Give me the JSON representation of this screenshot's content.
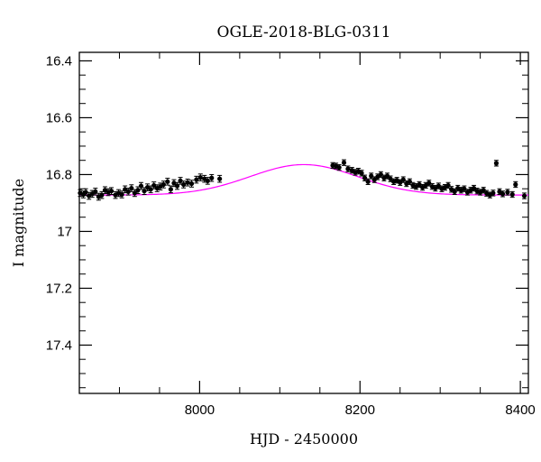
{
  "chart_data": {
    "type": "scatter",
    "title": "OGLE-2018-BLG-0311",
    "xlabel": "HJD - 2450000",
    "ylabel": "I magnitude",
    "xlim": [
      7850,
      8410
    ],
    "ylim": [
      17.57,
      16.37
    ],
    "y_inverted": true,
    "x_ticks": [
      8000,
      8200,
      8400
    ],
    "x_tick_labels": [
      "8000",
      "8200",
      "8400"
    ],
    "y_ticks": [
      16.4,
      16.6,
      16.8,
      17.0,
      17.2,
      17.4
    ],
    "y_tick_labels": [
      "16.4",
      "16.6",
      "16.8",
      "17",
      "17.2",
      "17.4"
    ],
    "grid": false,
    "series": [
      {
        "kind": "points-with-errorbars",
        "color": "#000000",
        "points": [
          [
            7851,
            16.865,
            0.012
          ],
          [
            7855,
            16.87,
            0.012
          ],
          [
            7858,
            16.862,
            0.012
          ],
          [
            7862,
            16.875,
            0.012
          ],
          [
            7866,
            16.868,
            0.012
          ],
          [
            7870,
            16.86,
            0.012
          ],
          [
            7874,
            16.878,
            0.012
          ],
          [
            7878,
            16.872,
            0.012
          ],
          [
            7882,
            16.855,
            0.012
          ],
          [
            7886,
            16.862,
            0.012
          ],
          [
            7890,
            16.858,
            0.012
          ],
          [
            7895,
            16.872,
            0.012
          ],
          [
            7899,
            16.865,
            0.012
          ],
          [
            7903,
            16.87,
            0.012
          ],
          [
            7907,
            16.852,
            0.012
          ],
          [
            7911,
            16.86,
            0.012
          ],
          [
            7915,
            16.848,
            0.012
          ],
          [
            7919,
            16.865,
            0.012
          ],
          [
            7923,
            16.855,
            0.012
          ],
          [
            7927,
            16.84,
            0.012
          ],
          [
            7931,
            16.858,
            0.012
          ],
          [
            7935,
            16.845,
            0.012
          ],
          [
            7939,
            16.852,
            0.012
          ],
          [
            7943,
            16.838,
            0.012
          ],
          [
            7947,
            16.848,
            0.012
          ],
          [
            7951,
            16.842,
            0.012
          ],
          [
            7955,
            16.835,
            0.012
          ],
          [
            7960,
            16.825,
            0.012
          ],
          [
            7964,
            16.852,
            0.012
          ],
          [
            7968,
            16.83,
            0.012
          ],
          [
            7972,
            16.84,
            0.012
          ],
          [
            7976,
            16.822,
            0.012
          ],
          [
            7980,
            16.835,
            0.012
          ],
          [
            7985,
            16.828,
            0.012
          ],
          [
            7990,
            16.832,
            0.012
          ],
          [
            7996,
            16.818,
            0.012
          ],
          [
            8001,
            16.81,
            0.012
          ],
          [
            8006,
            16.815,
            0.012
          ],
          [
            8010,
            16.822,
            0.012
          ],
          [
            8015,
            16.812,
            0.012
          ],
          [
            8025,
            16.815,
            0.012
          ],
          [
            8166,
            16.768,
            0.01
          ],
          [
            8170,
            16.77,
            0.01
          ],
          [
            8174,
            16.775,
            0.01
          ],
          [
            8180,
            16.758,
            0.01
          ],
          [
            8185,
            16.78,
            0.01
          ],
          [
            8190,
            16.785,
            0.01
          ],
          [
            8194,
            16.792,
            0.01
          ],
          [
            8198,
            16.788,
            0.01
          ],
          [
            8202,
            16.795,
            0.01
          ],
          [
            8206,
            16.812,
            0.01
          ],
          [
            8210,
            16.825,
            0.01
          ],
          [
            8214,
            16.805,
            0.01
          ],
          [
            8218,
            16.818,
            0.01
          ],
          [
            8222,
            16.808,
            0.01
          ],
          [
            8226,
            16.8,
            0.01
          ],
          [
            8230,
            16.812,
            0.01
          ],
          [
            8234,
            16.805,
            0.01
          ],
          [
            8238,
            16.815,
            0.01
          ],
          [
            8242,
            16.825,
            0.01
          ],
          [
            8246,
            16.82,
            0.01
          ],
          [
            8250,
            16.828,
            0.01
          ],
          [
            8254,
            16.818,
            0.01
          ],
          [
            8258,
            16.832,
            0.01
          ],
          [
            8262,
            16.825,
            0.01
          ],
          [
            8266,
            16.838,
            0.01
          ],
          [
            8270,
            16.842,
            0.01
          ],
          [
            8274,
            16.835,
            0.01
          ],
          [
            8278,
            16.845,
            0.01
          ],
          [
            8282,
            16.838,
            0.01
          ],
          [
            8286,
            16.83,
            0.01
          ],
          [
            8290,
            16.842,
            0.01
          ],
          [
            8294,
            16.848,
            0.01
          ],
          [
            8298,
            16.84,
            0.01
          ],
          [
            8302,
            16.85,
            0.01
          ],
          [
            8306,
            16.845,
            0.01
          ],
          [
            8310,
            16.838,
            0.01
          ],
          [
            8314,
            16.852,
            0.01
          ],
          [
            8318,
            16.86,
            0.01
          ],
          [
            8322,
            16.848,
            0.01
          ],
          [
            8326,
            16.855,
            0.01
          ],
          [
            8330,
            16.85,
            0.01
          ],
          [
            8334,
            16.862,
            0.01
          ],
          [
            8338,
            16.855,
            0.01
          ],
          [
            8342,
            16.848,
            0.01
          ],
          [
            8346,
            16.858,
            0.01
          ],
          [
            8350,
            16.862,
            0.01
          ],
          [
            8354,
            16.855,
            0.01
          ],
          [
            8358,
            16.866,
            0.01
          ],
          [
            8362,
            16.872,
            0.01
          ],
          [
            8366,
            16.865,
            0.01
          ],
          [
            8370,
            16.76,
            0.01
          ],
          [
            8374,
            16.86,
            0.01
          ],
          [
            8378,
            16.868,
            0.01
          ],
          [
            8384,
            16.862,
            0.01
          ],
          [
            8390,
            16.87,
            0.01
          ],
          [
            8394,
            16.835,
            0.01
          ],
          [
            8405,
            16.875,
            0.01
          ]
        ]
      },
      {
        "kind": "model-curve",
        "color": "#ff00ff",
        "baseline": 16.872,
        "peak": 16.765,
        "t0": 8130,
        "width": 95
      }
    ]
  }
}
